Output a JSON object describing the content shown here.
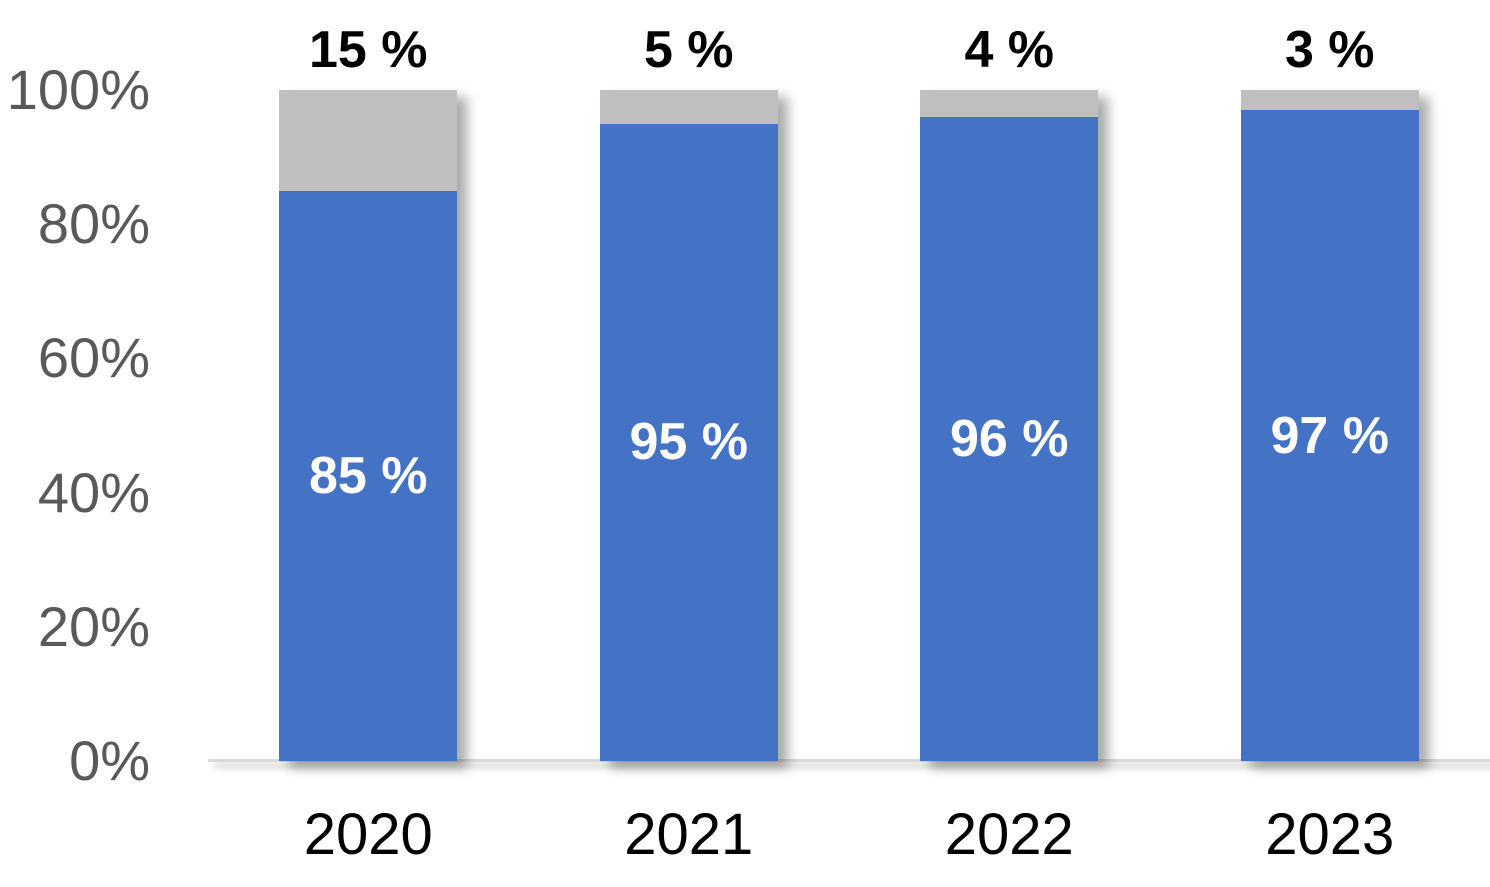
{
  "chart_data": {
    "type": "bar",
    "stacked": true,
    "percent_stacked": true,
    "title": "",
    "xlabel": "",
    "ylabel": "",
    "categories": [
      "2020",
      "2021",
      "2022",
      "2023"
    ],
    "series": [
      {
        "name": "primary-blue",
        "color": "#4472C4",
        "values": [
          85,
          95,
          96,
          97
        ],
        "labels": [
          "85 %",
          "95 %",
          "96 %",
          "97 %"
        ],
        "label_color": "#FFFFFF",
        "label_position": "inside-center"
      },
      {
        "name": "secondary-gray",
        "color": "#BFBFBF",
        "values": [
          15,
          5,
          4,
          3
        ],
        "labels": [
          "15 %",
          "5 %",
          "4 %",
          "3 %"
        ],
        "label_color": "#000000",
        "label_position": "above-column"
      }
    ],
    "ylim": [
      0,
      100
    ],
    "yticks": [
      "0%",
      "20%",
      "40%",
      "60%",
      "80%",
      "100%"
    ],
    "ytick_values": [
      0,
      20,
      40,
      60,
      80,
      100
    ],
    "grid": false,
    "legend": false,
    "colors": {
      "ytick_label": "#595959",
      "xtick_label": "#000000",
      "top_label": "#000000",
      "inside_label": "#FFFFFF",
      "axis_line": "#D9D9D9",
      "background": "#FFFFFF"
    },
    "effects": {
      "bar_shadow": true,
      "axis_line_shadow": true
    }
  }
}
